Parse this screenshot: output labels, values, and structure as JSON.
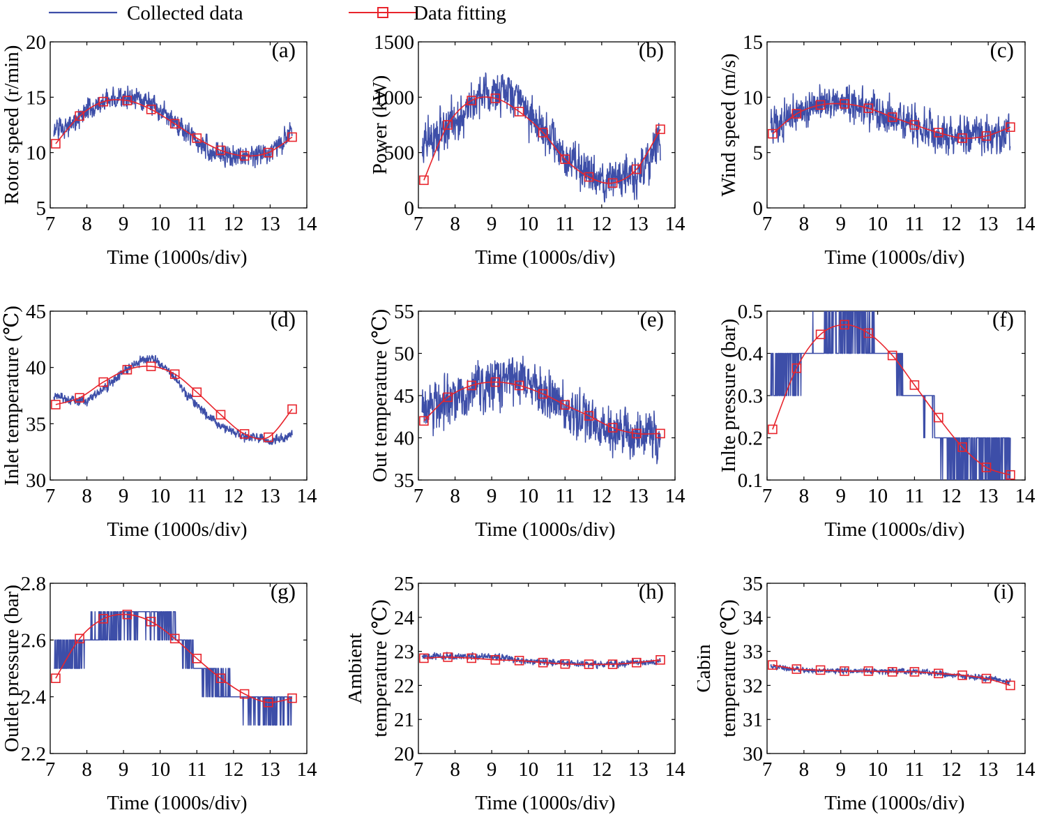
{
  "legend": {
    "collected_label": "Collected data",
    "fitting_label": "Data fitting",
    "collected_color": "#3d4ea8",
    "fitting_color": "#e8242c"
  },
  "chart_data": [
    {
      "id": "a",
      "type": "line",
      "panel_label": "(a)",
      "xlabel": "Time (1000s/div)",
      "ylabel": "Rotor speed (r/min)",
      "xlim": [
        7,
        14
      ],
      "ylim": [
        5,
        20
      ],
      "xticks": [
        7,
        8,
        9,
        10,
        11,
        12,
        13,
        14
      ],
      "yticks": [
        5,
        10,
        15,
        20
      ],
      "collected": {
        "name": "Collected data",
        "x_range": [
          7.1,
          13.6
        ],
        "noise": 1.2,
        "trend": [
          [
            7.1,
            12.0
          ],
          [
            7.5,
            12.5
          ],
          [
            8.0,
            13.6
          ],
          [
            8.5,
            14.6
          ],
          [
            9.0,
            15.0
          ],
          [
            9.5,
            14.9
          ],
          [
            10.0,
            13.8
          ],
          [
            10.5,
            12.3
          ],
          [
            11.0,
            11.0
          ],
          [
            11.5,
            10.1
          ],
          [
            12.0,
            9.6
          ],
          [
            12.5,
            9.6
          ],
          [
            13.0,
            10.0
          ],
          [
            13.6,
            12.0
          ]
        ]
      },
      "fitting": {
        "name": "Data fitting",
        "x": [
          7.15,
          7.8,
          8.45,
          9.1,
          9.75,
          10.4,
          11.0,
          11.65,
          12.3,
          12.95,
          13.6
        ],
        "y": [
          10.8,
          13.3,
          14.6,
          14.7,
          13.9,
          12.6,
          11.3,
          10.2,
          9.7,
          10.0,
          11.4
        ]
      }
    },
    {
      "id": "b",
      "type": "line",
      "panel_label": "(b)",
      "xlabel": "Time (1000s/div)",
      "ylabel": "Power (kW)",
      "xlim": [
        7,
        14
      ],
      "ylim": [
        0,
        1500
      ],
      "xticks": [
        7,
        8,
        9,
        10,
        11,
        12,
        13,
        14
      ],
      "yticks": [
        0,
        500,
        1000,
        1500
      ],
      "collected": {
        "name": "Collected data",
        "x_range": [
          7.1,
          13.6
        ],
        "noise": 230,
        "trend": [
          [
            7.1,
            600
          ],
          [
            7.5,
            640
          ],
          [
            8.0,
            780
          ],
          [
            8.5,
            980
          ],
          [
            9.0,
            1050
          ],
          [
            9.5,
            1080
          ],
          [
            10.0,
            900
          ],
          [
            10.5,
            680
          ],
          [
            11.0,
            480
          ],
          [
            11.5,
            320
          ],
          [
            12.0,
            260
          ],
          [
            12.5,
            230
          ],
          [
            13.0,
            300
          ],
          [
            13.6,
            600
          ]
        ]
      },
      "fitting": {
        "name": "Data fitting",
        "x": [
          7.15,
          7.8,
          8.45,
          9.1,
          9.75,
          10.4,
          11.0,
          11.65,
          12.3,
          12.95,
          13.6
        ],
        "y": [
          250,
          750,
          970,
          990,
          870,
          680,
          440,
          280,
          225,
          350,
          710
        ]
      }
    },
    {
      "id": "c",
      "type": "line",
      "panel_label": "(c)",
      "xlabel": "Time (1000s/div)",
      "ylabel": "Wind speed (m/s)",
      "xlim": [
        7,
        14
      ],
      "ylim": [
        0,
        15
      ],
      "xticks": [
        7,
        8,
        9,
        10,
        11,
        12,
        13,
        14
      ],
      "yticks": [
        0,
        5,
        10,
        15
      ],
      "collected": {
        "name": "Collected data",
        "x_range": [
          7.1,
          13.6
        ],
        "noise": 2.0,
        "trend": [
          [
            7.1,
            7.5
          ],
          [
            7.5,
            8.2
          ],
          [
            8.0,
            9.0
          ],
          [
            8.5,
            9.4
          ],
          [
            9.0,
            9.6
          ],
          [
            9.5,
            9.3
          ],
          [
            10.0,
            8.7
          ],
          [
            10.5,
            8.0
          ],
          [
            11.0,
            7.4
          ],
          [
            11.5,
            6.9
          ],
          [
            12.0,
            6.6
          ],
          [
            12.5,
            6.6
          ],
          [
            13.0,
            6.8
          ],
          [
            13.6,
            7.2
          ]
        ]
      },
      "fitting": {
        "name": "Data fitting",
        "x": [
          7.15,
          7.8,
          8.45,
          9.1,
          9.75,
          10.4,
          11.0,
          11.65,
          12.3,
          12.95,
          13.6
        ],
        "y": [
          6.7,
          8.5,
          9.3,
          9.4,
          9.0,
          8.2,
          7.5,
          6.8,
          6.3,
          6.5,
          7.3
        ]
      }
    },
    {
      "id": "d",
      "type": "line",
      "panel_label": "(d)",
      "xlabel": "Time (1000s/div)",
      "ylabel": "Inlet temperature (℃)",
      "xlim": [
        7,
        14
      ],
      "ylim": [
        30,
        45
      ],
      "xticks": [
        7,
        8,
        9,
        10,
        11,
        12,
        13,
        14
      ],
      "yticks": [
        30,
        35,
        40,
        45
      ],
      "collected": {
        "name": "Collected data",
        "x_range": [
          7.1,
          13.6
        ],
        "noise": 0.5,
        "trend": [
          [
            7.1,
            37.6
          ],
          [
            7.5,
            37.1
          ],
          [
            8.0,
            37.0
          ],
          [
            8.5,
            38.1
          ],
          [
            9.0,
            39.6
          ],
          [
            9.5,
            40.6
          ],
          [
            9.8,
            40.8
          ],
          [
            10.2,
            39.8
          ],
          [
            10.7,
            37.8
          ],
          [
            11.2,
            36.0
          ],
          [
            11.7,
            34.7
          ],
          [
            12.2,
            34.0
          ],
          [
            12.7,
            33.7
          ],
          [
            13.0,
            33.4
          ],
          [
            13.6,
            34.0
          ]
        ]
      },
      "fitting": {
        "name": "Data fitting",
        "x": [
          7.15,
          7.8,
          8.45,
          9.1,
          9.75,
          10.4,
          11.0,
          11.65,
          12.3,
          12.95,
          13.6
        ],
        "y": [
          36.7,
          37.3,
          38.7,
          39.8,
          40.1,
          39.4,
          37.8,
          35.8,
          34.1,
          33.8,
          36.3
        ]
      }
    },
    {
      "id": "e",
      "type": "line",
      "panel_label": "(e)",
      "xlabel": "Time (1000s/div)",
      "ylabel": "Out temperature (℃)",
      "xlim": [
        7,
        14
      ],
      "ylim": [
        35,
        55
      ],
      "xticks": [
        7,
        8,
        9,
        10,
        11,
        12,
        13,
        14
      ],
      "yticks": [
        35,
        40,
        45,
        50,
        55
      ],
      "collected": {
        "name": "Collected data",
        "x_range": [
          7.1,
          13.6
        ],
        "noise": 3.5,
        "trend": [
          [
            7.1,
            43.5
          ],
          [
            7.5,
            43.8
          ],
          [
            8.0,
            44.8
          ],
          [
            8.5,
            45.8
          ],
          [
            9.0,
            46.6
          ],
          [
            9.5,
            47.0
          ],
          [
            10.0,
            46.5
          ],
          [
            10.5,
            45.0
          ],
          [
            11.0,
            43.7
          ],
          [
            11.5,
            42.5
          ],
          [
            12.0,
            41.5
          ],
          [
            12.5,
            40.7
          ],
          [
            13.0,
            40.3
          ],
          [
            13.6,
            40.2
          ]
        ]
      },
      "fitting": {
        "name": "Data fitting",
        "x": [
          7.15,
          7.8,
          8.45,
          9.1,
          9.75,
          10.4,
          11.0,
          11.65,
          12.3,
          12.95,
          13.6
        ],
        "y": [
          42.0,
          44.8,
          46.2,
          46.6,
          46.2,
          45.2,
          43.9,
          42.6,
          41.2,
          40.5,
          40.5
        ]
      }
    },
    {
      "id": "f",
      "type": "line",
      "panel_label": "(f)",
      "xlabel": "Time (1000s/div)",
      "ylabel": "Inlte pressure (bar)",
      "xlim": [
        7,
        14
      ],
      "ylim": [
        0.1,
        0.5
      ],
      "xticks": [
        7,
        8,
        9,
        10,
        11,
        12,
        13,
        14
      ],
      "yticks": [
        0.1,
        0.2,
        0.3,
        0.4,
        0.5
      ],
      "collected": {
        "name": "Collected data",
        "x_range": [
          7.1,
          13.6
        ],
        "step": 0.1,
        "trend": [
          [
            7.1,
            0.35
          ],
          [
            7.7,
            0.36
          ],
          [
            8.0,
            0.4
          ],
          [
            8.5,
            0.42
          ],
          [
            8.8,
            0.45
          ],
          [
            9.5,
            0.46
          ],
          [
            10.0,
            0.4
          ],
          [
            10.5,
            0.4
          ],
          [
            10.8,
            0.3
          ],
          [
            11.5,
            0.28
          ],
          [
            11.6,
            0.2
          ],
          [
            12.0,
            0.16
          ],
          [
            13.0,
            0.15
          ],
          [
            13.6,
            0.14
          ]
        ]
      },
      "fitting": {
        "name": "Data fitting",
        "x": [
          7.15,
          7.8,
          8.45,
          9.1,
          9.75,
          10.4,
          11.0,
          11.65,
          12.3,
          12.95,
          13.6
        ],
        "y": [
          0.22,
          0.365,
          0.445,
          0.468,
          0.448,
          0.395,
          0.325,
          0.248,
          0.178,
          0.13,
          0.112
        ]
      }
    },
    {
      "id": "g",
      "type": "line",
      "panel_label": "(g)",
      "xlabel": "Time (1000s/div)",
      "ylabel": "Outlet pressure (bar)",
      "xlim": [
        7,
        14
      ],
      "ylim": [
        2.2,
        2.8
      ],
      "xticks": [
        7,
        8,
        9,
        10,
        11,
        12,
        13,
        14
      ],
      "yticks": [
        2.2,
        2.4,
        2.6,
        2.8
      ],
      "collected": {
        "name": "Collected data",
        "x_range": [
          7.1,
          13.6
        ],
        "step": 0.1,
        "trend": [
          [
            7.1,
            2.55
          ],
          [
            7.8,
            2.56
          ],
          [
            8.0,
            2.6
          ],
          [
            8.5,
            2.64
          ],
          [
            8.8,
            2.66
          ],
          [
            9.5,
            2.69
          ],
          [
            10.2,
            2.66
          ],
          [
            10.5,
            2.6
          ],
          [
            10.8,
            2.56
          ],
          [
            11.0,
            2.5
          ],
          [
            11.5,
            2.44
          ],
          [
            12.0,
            2.4
          ],
          [
            12.6,
            2.38
          ],
          [
            13.0,
            2.36
          ],
          [
            13.6,
            2.37
          ]
        ]
      },
      "fitting": {
        "name": "Data fitting",
        "x": [
          7.15,
          7.8,
          8.45,
          9.1,
          9.75,
          10.4,
          11.0,
          11.65,
          12.3,
          12.95,
          13.6
        ],
        "y": [
          2.465,
          2.605,
          2.675,
          2.69,
          2.665,
          2.605,
          2.535,
          2.465,
          2.41,
          2.38,
          2.395
        ]
      }
    },
    {
      "id": "h",
      "type": "line",
      "panel_label": "(h)",
      "xlabel": "Time (1000s/div)",
      "ylabel_lines": [
        "Ambient",
        "temperature (℃)"
      ],
      "xlim": [
        7,
        14
      ],
      "ylim": [
        20,
        25
      ],
      "xticks": [
        7,
        8,
        9,
        10,
        11,
        12,
        13,
        14
      ],
      "yticks": [
        20,
        21,
        22,
        23,
        24,
        25
      ],
      "collected": {
        "name": "Collected data",
        "x_range": [
          7.1,
          13.6
        ],
        "noise": 0.12,
        "trend": [
          [
            7.1,
            22.85
          ],
          [
            8.0,
            22.85
          ],
          [
            9.0,
            22.85
          ],
          [
            10.0,
            22.72
          ],
          [
            11.0,
            22.65
          ],
          [
            12.0,
            22.62
          ],
          [
            13.0,
            22.65
          ],
          [
            13.6,
            22.7
          ]
        ]
      },
      "fitting": {
        "name": "Data fitting",
        "x": [
          7.15,
          7.8,
          8.45,
          9.1,
          9.75,
          10.4,
          11.0,
          11.65,
          12.3,
          12.95,
          13.6
        ],
        "y": [
          22.8,
          22.83,
          22.8,
          22.75,
          22.73,
          22.67,
          22.63,
          22.62,
          22.62,
          22.67,
          22.75
        ]
      }
    },
    {
      "id": "i",
      "type": "line",
      "panel_label": "(i)",
      "xlabel": "Time (1000s/div)",
      "ylabel_lines": [
        "Cabin",
        "temperature (℃)"
      ],
      "xlim": [
        7,
        14
      ],
      "ylim": [
        30,
        35
      ],
      "xticks": [
        7,
        8,
        9,
        10,
        11,
        12,
        13,
        14
      ],
      "yticks": [
        30,
        31,
        32,
        33,
        34,
        35
      ],
      "collected": {
        "name": "Collected data",
        "x_range": [
          7.1,
          13.6
        ],
        "noise": 0.1,
        "trend": [
          [
            7.1,
            32.55
          ],
          [
            8.0,
            32.45
          ],
          [
            9.0,
            32.42
          ],
          [
            10.0,
            32.42
          ],
          [
            11.0,
            32.42
          ],
          [
            12.0,
            32.3
          ],
          [
            13.0,
            32.2
          ],
          [
            13.6,
            32.1
          ]
        ]
      },
      "fitting": {
        "name": "Data fitting",
        "x": [
          7.15,
          7.8,
          8.45,
          9.1,
          9.75,
          10.4,
          11.0,
          11.65,
          12.3,
          12.95,
          13.6
        ],
        "y": [
          32.6,
          32.48,
          32.45,
          32.42,
          32.42,
          32.4,
          32.4,
          32.35,
          32.3,
          32.2,
          32.0
        ]
      }
    }
  ]
}
